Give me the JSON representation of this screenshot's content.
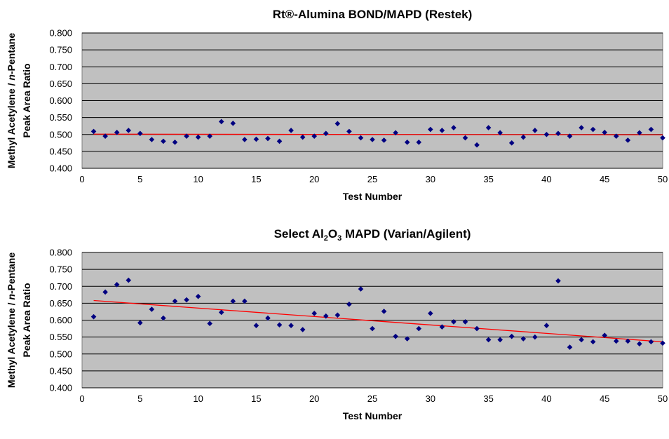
{
  "chart_data": [
    {
      "type": "scatter",
      "title": "Rt®-Alumina BOND/MAPD (Restek)",
      "xlabel": "Test Number",
      "ylabel_line1": "Methyl Acetylene / n-Pentane",
      "ylabel_line2": "Peak Area Ratio",
      "xlim": [
        0,
        50
      ],
      "ylim": [
        0.4,
        0.8
      ],
      "x_ticks": [
        "0",
        "5",
        "10",
        "15",
        "20",
        "25",
        "30",
        "35",
        "40",
        "45",
        "50"
      ],
      "y_ticks": [
        "0.400",
        "0.450",
        "0.500",
        "0.550",
        "0.600",
        "0.650",
        "0.700",
        "0.750",
        "0.800"
      ],
      "grid": true,
      "plot_background": "#c0c0c0",
      "marker_color": "#000080",
      "trendline_color": "#ff0000",
      "trendline": {
        "x": [
          1,
          50
        ],
        "y": [
          0.501,
          0.499
        ]
      },
      "x": [
        1,
        2,
        3,
        4,
        5,
        6,
        7,
        8,
        9,
        10,
        11,
        12,
        13,
        14,
        15,
        16,
        17,
        18,
        19,
        20,
        21,
        22,
        23,
        24,
        25,
        26,
        27,
        28,
        29,
        30,
        31,
        32,
        33,
        34,
        35,
        36,
        37,
        38,
        39,
        40,
        41,
        42,
        43,
        44,
        45,
        46,
        47,
        48,
        49,
        50
      ],
      "y": [
        0.509,
        0.495,
        0.506,
        0.512,
        0.503,
        0.485,
        0.48,
        0.477,
        0.495,
        0.492,
        0.495,
        0.538,
        0.533,
        0.485,
        0.486,
        0.488,
        0.48,
        0.512,
        0.492,
        0.495,
        0.503,
        0.532,
        0.509,
        0.49,
        0.485,
        0.483,
        0.505,
        0.477,
        0.477,
        0.515,
        0.512,
        0.52,
        0.49,
        0.469,
        0.52,
        0.505,
        0.475,
        0.492,
        0.512,
        0.5,
        0.503,
        0.495,
        0.52,
        0.515,
        0.506,
        0.495,
        0.483,
        0.505,
        0.515,
        0.49
      ]
    },
    {
      "type": "scatter",
      "title_parts": [
        "Select Al",
        "2",
        "O",
        "3",
        " MAPD (Varian/Agilent)"
      ],
      "xlabel": "Test Number",
      "ylabel_line1": "Methyl Acetylene / n-Pentane",
      "ylabel_line2": "Peak Area Ratio",
      "xlim": [
        0,
        50
      ],
      "ylim": [
        0.4,
        0.8
      ],
      "x_ticks": [
        "0",
        "5",
        "10",
        "15",
        "20",
        "25",
        "30",
        "35",
        "40",
        "45",
        "50"
      ],
      "y_ticks": [
        "0.400",
        "0.450",
        "0.500",
        "0.550",
        "0.600",
        "0.650",
        "0.700",
        "0.750",
        "0.800"
      ],
      "grid": true,
      "plot_background": "#c0c0c0",
      "marker_color": "#000080",
      "trendline_color": "#ff0000",
      "trendline": {
        "x": [
          1,
          50
        ],
        "y": [
          0.658,
          0.536
        ]
      },
      "x": [
        1,
        2,
        3,
        4,
        5,
        6,
        7,
        8,
        9,
        10,
        11,
        12,
        13,
        14,
        15,
        16,
        17,
        18,
        19,
        20,
        21,
        22,
        23,
        24,
        25,
        26,
        27,
        28,
        29,
        30,
        31,
        32,
        33,
        34,
        35,
        36,
        37,
        38,
        39,
        40,
        41,
        42,
        43,
        44,
        45,
        46,
        47,
        48,
        49,
        50
      ],
      "y": [
        0.61,
        0.683,
        0.705,
        0.718,
        0.592,
        0.632,
        0.606,
        0.656,
        0.66,
        0.67,
        0.59,
        0.623,
        0.656,
        0.656,
        0.584,
        0.606,
        0.586,
        0.584,
        0.572,
        0.62,
        0.612,
        0.615,
        0.647,
        0.692,
        0.575,
        0.626,
        0.552,
        0.545,
        0.575,
        0.62,
        0.58,
        0.595,
        0.595,
        0.575,
        0.542,
        0.542,
        0.552,
        0.545,
        0.55,
        0.584,
        0.716,
        0.52,
        0.542,
        0.536,
        0.555,
        0.538,
        0.538,
        0.53,
        0.536,
        0.532
      ]
    }
  ]
}
